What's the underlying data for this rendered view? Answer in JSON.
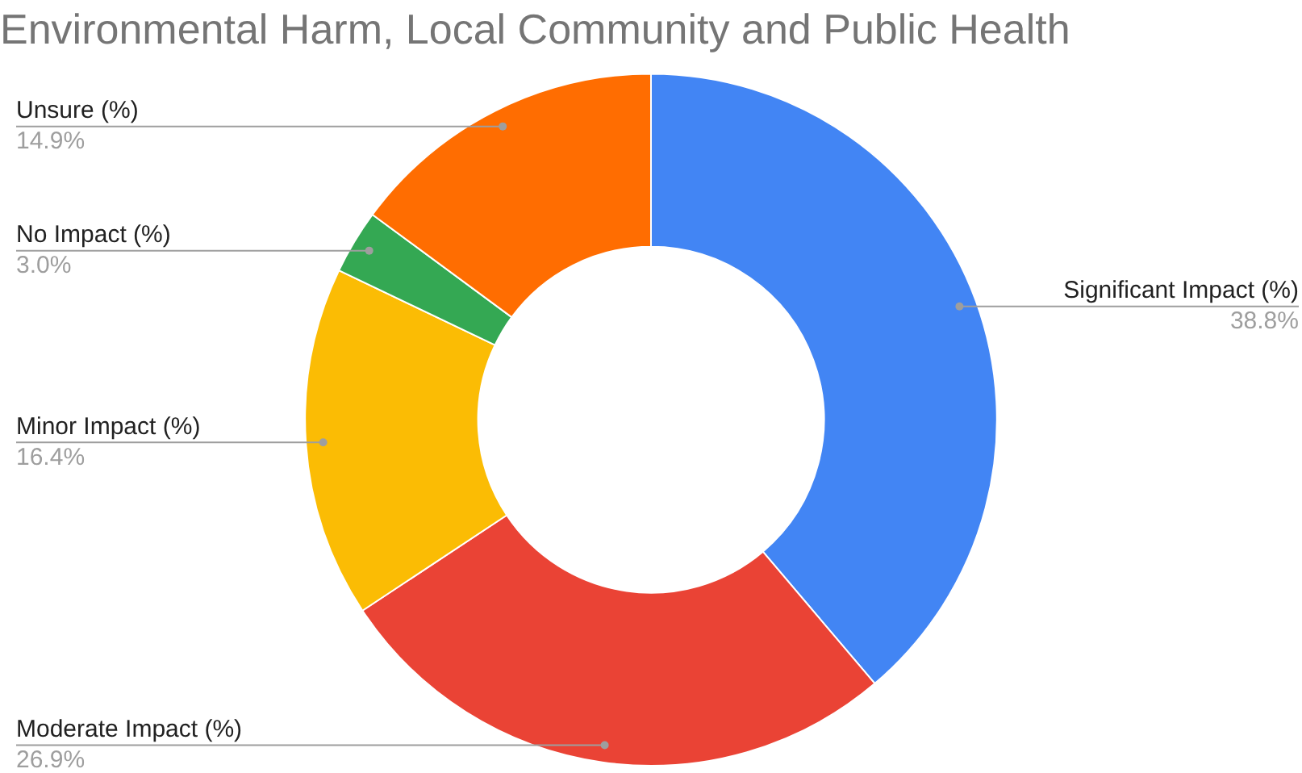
{
  "chart_data": {
    "type": "donut",
    "title": "Environmental Harm, Local Community and Public Health",
    "categories": [
      "Significant Impact (%)",
      "Moderate Impact (%)",
      "Minor Impact (%)",
      "No Impact (%)",
      "Unsure (%)"
    ],
    "values": [
      38.8,
      26.9,
      16.4,
      3.0,
      14.9
    ],
    "colors": [
      "#4285f4",
      "#ea4335",
      "#fbbc04",
      "#34a853",
      "#ff6d01"
    ],
    "value_labels": [
      "38.8%",
      "26.9%",
      "16.4%",
      "3.0%",
      "14.9%"
    ],
    "legend": false
  }
}
